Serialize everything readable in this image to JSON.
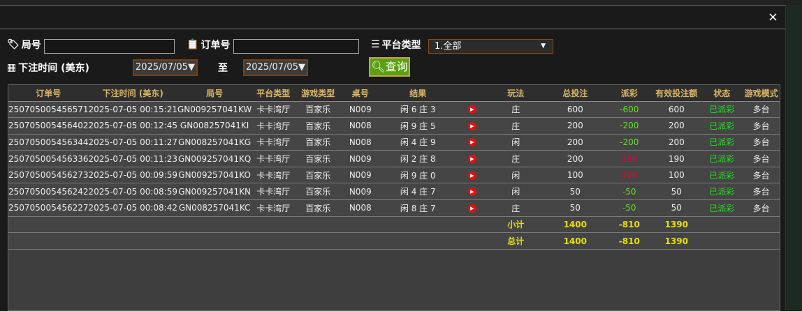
{
  "filters": {
    "round_label": "局号",
    "round_value": "",
    "order_label": "订单号",
    "order_value": "",
    "platform_label": "平台类型",
    "platform_value": "1.全部",
    "time_label": "下注时间 (美东)",
    "date_from": "2025/07/05▼",
    "to_label": "至",
    "date_to": "2025/07/05▼",
    "query_label": "查询"
  },
  "close_label": "×",
  "table": {
    "columns": [
      "订单号",
      "下注时间 (美东)",
      "局号",
      "平台类型",
      "游戏类型",
      "桌号",
      "结果",
      "",
      "玩法",
      "总投注",
      "派彩",
      "有效投注额",
      "状态",
      "游戏模式"
    ],
    "rows": [
      [
        "250705005456571",
        "2025-07-05 00:15:21",
        "GN009257041KW",
        "卡卡湾厅",
        "百家乐",
        "N009",
        "闲 6 庄 3",
        "",
        "庄",
        "600",
        "-600",
        "600",
        "已派彩",
        "多台"
      ],
      [
        "250705005456402",
        "2025-07-05 00:12:45",
        "GN008257041KI",
        "卡卡湾厅",
        "百家乐",
        "N008",
        "闲 9 庄 5",
        "",
        "庄",
        "200",
        "-200",
        "200",
        "已派彩",
        "多台"
      ],
      [
        "250705005456344",
        "2025-07-05 00:11:27",
        "GN008257041KG",
        "卡卡湾厅",
        "百家乐",
        "N008",
        "闲 4 庄 9",
        "",
        "闲",
        "200",
        "-200",
        "200",
        "已派彩",
        "多台"
      ],
      [
        "250705005456336",
        "2025-07-05 00:11:23",
        "GN009257041KQ",
        "卡卡湾厅",
        "百家乐",
        "N009",
        "闲 2 庄 8",
        "",
        "庄",
        "200",
        "190",
        "190",
        "已派彩",
        "多台"
      ],
      [
        "250705005456273",
        "2025-07-05 00:09:59",
        "GN009257041KO",
        "卡卡湾厅",
        "百家乐",
        "N009",
        "闲 9 庄 0",
        "",
        "闲",
        "100",
        "100",
        "100",
        "已派彩",
        "多台"
      ],
      [
        "250705005456242",
        "2025-07-05 00:08:59",
        "GN009257041KN",
        "卡卡湾厅",
        "百家乐",
        "N009",
        "闲 4 庄 7",
        "",
        "闲",
        "50",
        "-50",
        "50",
        "已派彩",
        "多台"
      ],
      [
        "250705005456227",
        "2025-07-05 00:08:42",
        "GN008257041KC",
        "卡卡湾厅",
        "百家乐",
        "N008",
        "闲 8 庄 7",
        "",
        "庄",
        "50",
        "-50",
        "50",
        "已派彩",
        "多台"
      ]
    ],
    "subtotal": {
      "label": "小计",
      "total_bet": "1400",
      "payout": "-810",
      "valid_bet": "1390"
    },
    "total": {
      "label": "总计",
      "total_bet": "1400",
      "payout": "-810",
      "valid_bet": "1390"
    }
  },
  "colors": {
    "negative": "#66dd22",
    "positive": "#cc1133",
    "status": "#22dd22",
    "totals": "#e8e000",
    "header": "#d9b665"
  }
}
